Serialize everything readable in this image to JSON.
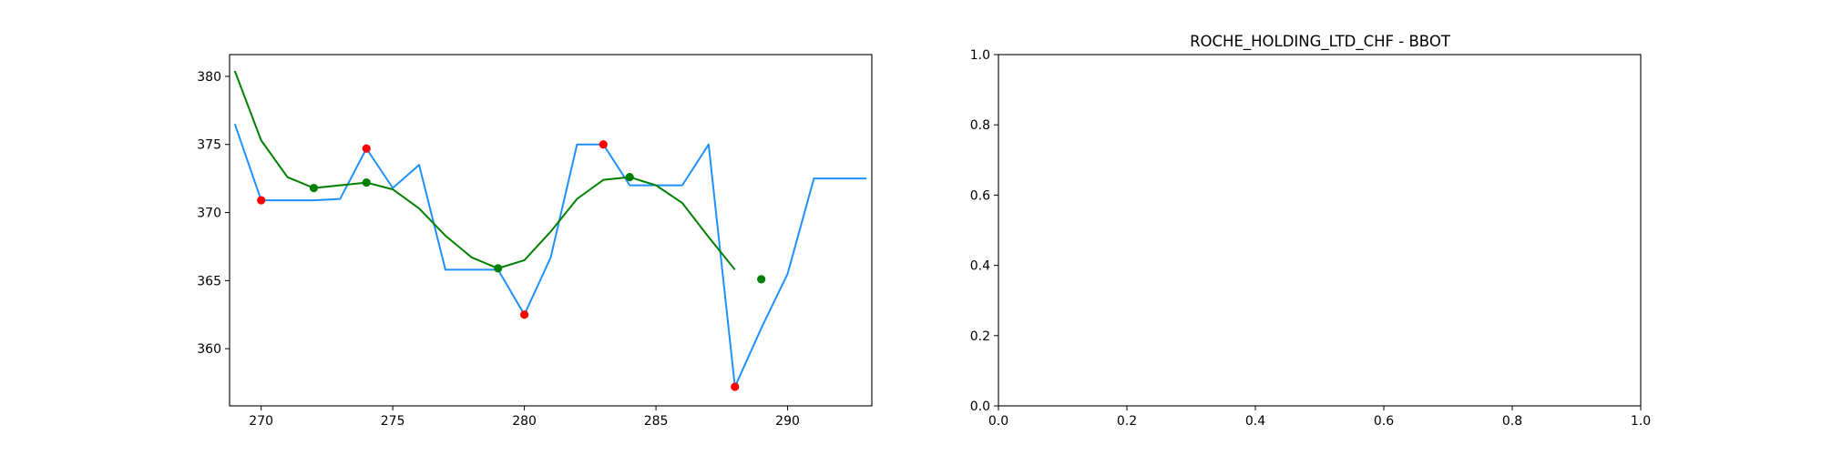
{
  "chart_data": [
    {
      "type": "line",
      "title": "",
      "xlabel": "",
      "ylabel": "",
      "xlim": [
        268.8,
        293.2
      ],
      "ylim": [
        355.8,
        381.6
      ],
      "xticks": [
        270,
        275,
        280,
        285,
        290
      ],
      "yticks": [
        360,
        365,
        370,
        375,
        380
      ],
      "xtick_labels": [
        "270",
        "275",
        "280",
        "285",
        "290"
      ],
      "ytick_labels": [
        "360",
        "365",
        "370",
        "375",
        "380"
      ],
      "grid": false,
      "series": [
        {
          "type": "line",
          "color": "#1e90ff",
          "x": [
            269,
            270,
            271,
            272,
            273,
            274,
            275,
            276,
            277,
            278,
            279,
            280,
            281,
            282,
            283,
            284,
            285,
            286,
            287,
            288,
            289,
            290,
            291,
            292,
            293
          ],
          "y": [
            376.5,
            370.9,
            370.9,
            370.9,
            371.0,
            374.7,
            371.8,
            373.5,
            365.8,
            365.8,
            365.8,
            362.5,
            366.7,
            375.0,
            375.0,
            372.0,
            372.0,
            372.0,
            375.0,
            357.2,
            361.5,
            365.5,
            372.5,
            372.5,
            372.5
          ]
        },
        {
          "type": "line",
          "color": "#008000",
          "x": [
            269,
            270,
            271,
            272,
            273,
            274,
            275,
            276,
            277,
            278,
            279,
            280,
            281,
            282,
            283,
            284,
            285,
            286,
            287,
            288
          ],
          "y": [
            380.4,
            375.3,
            372.6,
            371.8,
            372.0,
            372.2,
            371.7,
            370.3,
            368.3,
            366.7,
            365.9,
            366.5,
            368.6,
            371.0,
            372.4,
            372.6,
            372.0,
            370.7,
            368.2,
            365.8
          ]
        },
        {
          "type": "scatter",
          "color": "#ff0000",
          "x": [
            270,
            274,
            280,
            283,
            288
          ],
          "y": [
            370.9,
            374.7,
            362.5,
            375.0,
            357.2
          ]
        },
        {
          "type": "scatter",
          "color": "#008000",
          "x": [
            272,
            274,
            279,
            284,
            289
          ],
          "y": [
            371.8,
            372.2,
            365.9,
            372.6,
            365.1
          ]
        }
      ]
    },
    {
      "type": "line",
      "title": "ROCHE_HOLDING_LTD_CHF - BBOT",
      "xlabel": "",
      "ylabel": "",
      "xlim": [
        0,
        1
      ],
      "ylim": [
        0,
        1
      ],
      "xticks": [
        0,
        0.2,
        0.4,
        0.6,
        0.8,
        1.0
      ],
      "yticks": [
        0,
        0.2,
        0.4,
        0.6,
        0.8,
        1.0
      ],
      "xtick_labels": [
        "0.0",
        "0.2",
        "0.4",
        "0.6",
        "0.8",
        "1.0"
      ],
      "ytick_labels": [
        "0.0",
        "0.2",
        "0.4",
        "0.6",
        "0.8",
        "1.0"
      ],
      "grid": false,
      "series": []
    }
  ]
}
